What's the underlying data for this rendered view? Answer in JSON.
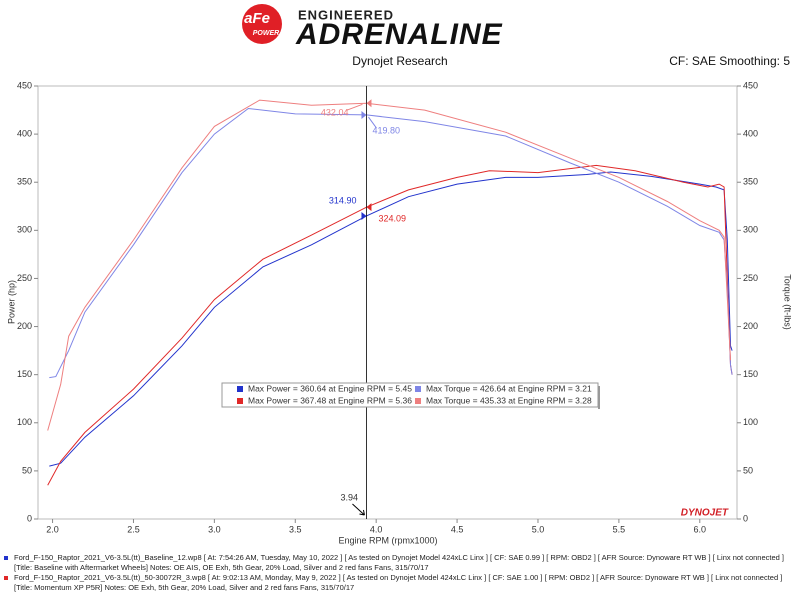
{
  "header": {
    "brand_top": "ENGINEERED",
    "brand_main": "ADRENALINE",
    "logo": "aFe",
    "logo_sub": "POWER",
    "source": "Dynojet Research",
    "settings": "CF: SAE Smoothing: 5",
    "watermark": "DYNOJET"
  },
  "chart_data": {
    "type": "line",
    "xlabel": "Engine RPM (rpmx1000)",
    "ylabel": "Power (hp)",
    "y2label": "Torque (ft-lbs)",
    "xlim": [
      1.91,
      6.23
    ],
    "ylim": [
      0,
      450
    ],
    "y2lim": [
      0,
      450
    ],
    "xticks": [
      {
        "value": 2,
        "label": "2.0"
      },
      2.5,
      {
        "value": 3,
        "label": "3.0"
      },
      3.5,
      {
        "value": 4,
        "label": "4.0"
      },
      4.5,
      {
        "value": 5,
        "label": "5.0"
      },
      5.5,
      {
        "value": 6,
        "label": "6.0"
      }
    ],
    "yticks": [
      0,
      50,
      100,
      150,
      200,
      250,
      300,
      350,
      400,
      450
    ],
    "y2ticks": [
      0,
      50,
      100,
      150,
      200,
      250,
      300,
      350,
      400,
      450
    ],
    "series": [
      {
        "name": "Max Power = 360.64 at Engine RPM = 5.45",
        "color": "#2233cc",
        "x": [
          1.98,
          2.05,
          2.2,
          2.5,
          2.8,
          3.0,
          3.3,
          3.6,
          3.94,
          4.2,
          4.5,
          4.8,
          5.0,
          5.3,
          5.45,
          5.7,
          6.0,
          6.1,
          6.15,
          6.17,
          6.19,
          6.2
        ],
        "values": [
          55,
          58,
          85,
          128,
          180,
          220,
          262,
          285,
          315,
          335,
          348,
          355,
          355,
          358,
          360.64,
          356,
          348,
          345,
          342,
          290,
          180,
          175
        ]
      },
      {
        "name": "Max Power = 367.48 at Engine RPM = 5.36",
        "color": "#e02828",
        "x": [
          1.97,
          2.05,
          2.2,
          2.5,
          2.8,
          3.0,
          3.3,
          3.6,
          3.94,
          4.2,
          4.5,
          4.7,
          5.0,
          5.36,
          5.6,
          5.9,
          6.05,
          6.12,
          6.15,
          6.17,
          6.19,
          6.2
        ],
        "values": [
          35,
          60,
          90,
          135,
          188,
          228,
          270,
          295,
          324,
          342,
          355,
          362,
          360,
          367.48,
          362,
          350,
          345,
          348,
          345,
          250,
          160,
          150
        ]
      },
      {
        "name": "Max Torque = 426.64 at Engine RPM = 3.21",
        "color": "#7f86e6",
        "axis": "y2",
        "x": [
          1.98,
          2.02,
          2.1,
          2.2,
          2.5,
          2.8,
          3.0,
          3.21,
          3.5,
          3.94,
          4.3,
          4.8,
          5.2,
          5.5,
          5.8,
          6.0,
          6.12,
          6.15,
          6.17,
          6.19,
          6.2
        ],
        "values": [
          147,
          148,
          175,
          215,
          285,
          360,
          400,
          426.64,
          421,
          420,
          413,
          398,
          370,
          350,
          325,
          305,
          298,
          290,
          240,
          160,
          150
        ]
      },
      {
        "name": "Max Torque = 435.33 at Engine RPM = 3.28",
        "color": "#ee7f7f",
        "axis": "y2",
        "x": [
          1.97,
          2.05,
          2.1,
          2.2,
          2.5,
          2.8,
          3.0,
          3.28,
          3.6,
          3.94,
          4.3,
          4.8,
          5.2,
          5.5,
          5.8,
          6.0,
          6.12,
          6.15,
          6.17,
          6.19
        ],
        "values": [
          92,
          140,
          190,
          220,
          290,
          365,
          408,
          435.33,
          430,
          432,
          425,
          402,
          375,
          355,
          330,
          310,
          300,
          293,
          230,
          165
        ]
      }
    ],
    "cursor": {
      "x": 3.94,
      "readouts": [
        {
          "value": 314.9,
          "label": "314.90"
        },
        324.09,
        {
          "value": 419.8,
          "label": "419.80"
        },
        432.04
      ]
    }
  },
  "footer": [
    "Ford_F-150_Raptor_2021_V6-3.5L(tt)_Baseline_12.wp8 [ At: 7:54:26 AM, Tuesday, May 10, 2022 ] [ As tested on Dynojet Model 424xLC Linx ] [ CF: SAE 0.99 ] [ RPM: OBD2 ] [ AFR Source: Dynoware RT WB ] [ Linx not connected ] [Title: Baseline with Aftermarket Wheels]  Notes: OE AIS, OE Exh, 5th Gear, 20% Load, Silver and 2 red fans Fans, 315/70/17",
    "Ford_F-150_Raptor_2021_V6-3.5L(tt)_50-30072R_3.wp8 [ At: 9:02:13 AM, Monday, May 9, 2022 ] [ As tested on Dynojet Model 424xLC Linx ] [ CF: SAE 1.00 ] [ RPM: OBD2 ] [ AFR Source: Dynoware RT WB ] [ Linx not connected ] [Title: Momentum XP P5R]  Notes: OE Exh, 5th Gear, 20% Load, Silver and 2 red fans Fans, 315/70/17"
  ]
}
